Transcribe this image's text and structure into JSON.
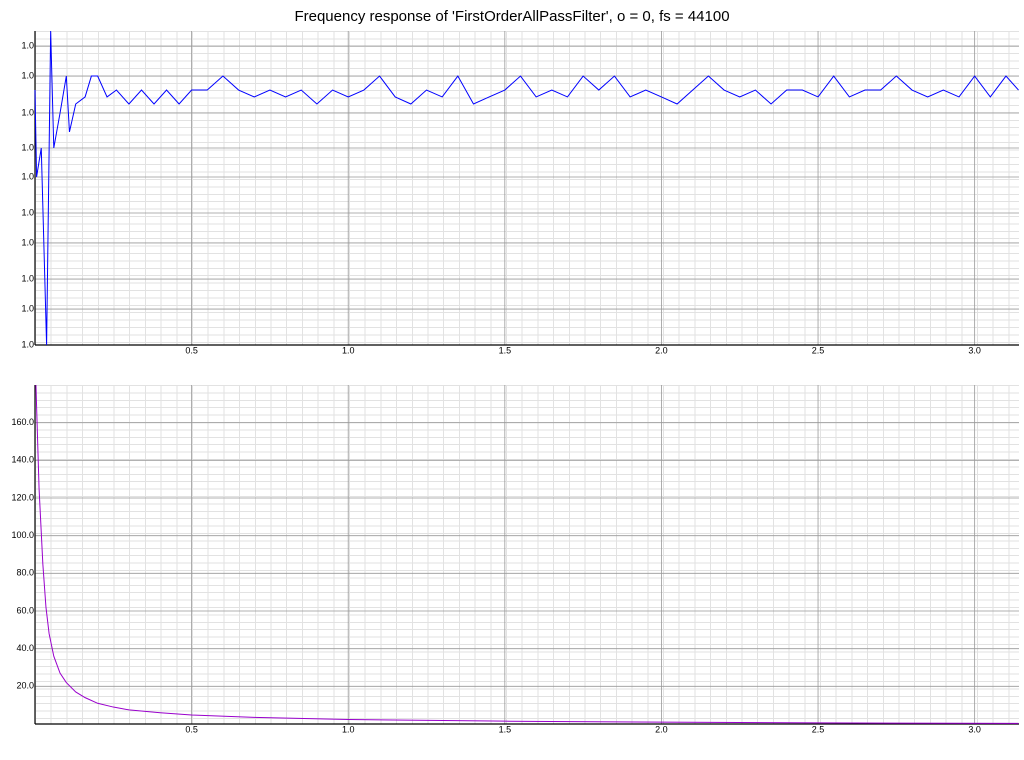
{
  "chart_data": [
    {
      "type": "line",
      "title": "Frequency response of 'FirstOrderAllPassFilter', o = 0, fs = 44100",
      "color": "#0000ff",
      "grid": true,
      "xlim": [
        0,
        3.1416
      ],
      "xticks": [
        0.5,
        {
          "value": 1.0,
          "label": "1.0"
        },
        1.5,
        {
          "value": 2.0,
          "label": "2.0"
        },
        2.5,
        {
          "value": 3.0,
          "label": "3.0"
        }
      ],
      "ylim": [
        0.9999999,
        1.0000001
      ],
      "yticks": [
        {
          "value": 0.9999999,
          "label": "1.0"
        },
        {
          "value": 0.9999999229,
          "label": "1.0"
        },
        {
          "value": 0.999999942,
          "label": "1.0"
        },
        {
          "value": 0.999999965,
          "label": "1.0"
        },
        {
          "value": 0.9999999841,
          "label": "1.0"
        },
        {
          "value": 1.000000007,
          "label": "1.0"
        },
        {
          "value": 1.0000000255,
          "label": "1.0"
        },
        {
          "value": 1.0000000478,
          "label": "1.0"
        },
        {
          "value": 1.0000000713,
          "label": "1.0"
        },
        {
          "value": 1.0000000904,
          "label": "1.0"
        }
      ],
      "x": [
        0,
        0.005,
        0.02,
        0.037,
        0.05,
        0.06,
        0.08,
        0.1,
        0.11,
        0.13,
        0.16,
        0.18,
        0.2,
        0.23,
        0.26,
        0.3,
        0.34,
        0.38,
        0.42,
        0.46,
        0.5,
        0.55,
        0.6,
        0.65,
        0.7,
        0.75,
        0.8,
        0.85,
        0.9,
        0.95,
        1.0,
        1.05,
        1.1,
        1.15,
        1.2,
        1.25,
        1.3,
        1.35,
        1.4,
        1.45,
        1.5,
        1.55,
        1.6,
        1.65,
        1.7,
        1.75,
        1.8,
        1.85,
        1.9,
        1.95,
        2.0,
        2.05,
        2.1,
        2.15,
        2.2,
        2.25,
        2.3,
        2.35,
        2.4,
        2.45,
        2.5,
        2.55,
        2.6,
        2.65,
        2.7,
        2.75,
        2.8,
        2.85,
        2.9,
        2.95,
        3.0,
        3.05,
        3.1,
        3.14
      ],
      "values": [
        1.0000000624,
        1.000000007,
        1.0000000255,
        0.9999999,
        1.0000001,
        1.0000000255,
        1.0000000478,
        1.0000000713,
        1.0000000357,
        1.0000000535,
        1.000000058,
        1.0000000713,
        1.0000000713,
        1.000000058,
        1.0000000624,
        1.0000000535,
        1.0000000624,
        1.0000000535,
        1.0000000624,
        1.0000000535,
        1.0000000624,
        1.0000000624,
        1.0000000713,
        1.0000000624,
        1.000000058,
        1.0000000624,
        1.000000058,
        1.0000000624,
        1.0000000535,
        1.0000000624,
        1.000000058,
        1.0000000624,
        1.0000000713,
        1.000000058,
        1.0000000535,
        1.0000000624,
        1.000000058,
        1.0000000713,
        1.0000000535,
        1.000000058,
        1.0000000624,
        1.0000000713,
        1.000000058,
        1.0000000624,
        1.000000058,
        1.0000000713,
        1.0000000624,
        1.0000000713,
        1.000000058,
        1.0000000624,
        1.000000058,
        1.0000000535,
        1.0000000624,
        1.0000000713,
        1.0000000624,
        1.000000058,
        1.0000000624,
        1.0000000535,
        1.0000000624,
        1.0000000624,
        1.000000058,
        1.0000000713,
        1.000000058,
        1.0000000624,
        1.0000000624,
        1.0000000713,
        1.0000000624,
        1.000000058,
        1.0000000624,
        1.000000058,
        1.0000000713,
        1.000000058,
        1.0000000713,
        1.0000000624
      ]
    },
    {
      "type": "line",
      "color": "#9900cc",
      "grid": true,
      "xlim": [
        0,
        3.1416
      ],
      "xticks": [
        0.5,
        {
          "value": 1.0,
          "label": "1.0"
        },
        1.5,
        {
          "value": 2.0,
          "label": "2.0"
        },
        2.5,
        {
          "value": 3.0,
          "label": "3.0"
        }
      ],
      "ylim": [
        0,
        180
      ],
      "yticks": [
        {
          "value": 20,
          "label": "20.0"
        },
        {
          "value": 40,
          "label": "40.0"
        },
        {
          "value": 60,
          "label": "60.0"
        },
        {
          "value": 80,
          "label": "80.0"
        },
        {
          "value": 100,
          "label": "100.0"
        },
        {
          "value": 120,
          "label": "120.0"
        },
        {
          "value": 140,
          "label": "140.0"
        },
        {
          "value": 160,
          "label": "160.0"
        }
      ],
      "x": [
        0.003,
        0.013,
        0.025,
        0.035,
        0.045,
        0.06,
        0.08,
        0.1,
        0.13,
        0.16,
        0.2,
        0.25,
        0.3,
        0.4,
        0.5,
        0.7,
        1.0,
        1.5,
        2.0,
        2.5,
        3.14
      ],
      "values": [
        180,
        125,
        85,
        62,
        48,
        36,
        27,
        22,
        17,
        14,
        11,
        9,
        7.5,
        6,
        4.8,
        3.5,
        2.4,
        1.5,
        1.0,
        0.6,
        0.3
      ]
    }
  ]
}
